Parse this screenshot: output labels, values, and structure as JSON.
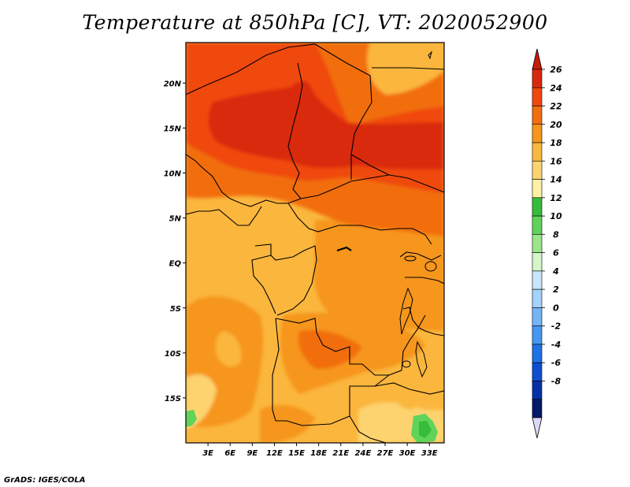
{
  "title": "Temperature at 850hPa [C], VT: 2020052900",
  "credit": "GrADS: IGES/COLA",
  "map": {
    "lat_range": [
      -20,
      24.5
    ],
    "lon_range": [
      0,
      35
    ],
    "lat_ticks": [
      {
        "value": 20,
        "label": "20N"
      },
      {
        "value": 15,
        "label": "15N"
      },
      {
        "value": 10,
        "label": "10N"
      },
      {
        "value": 5,
        "label": "5N"
      },
      {
        "value": 0,
        "label": "EQ"
      },
      {
        "value": -5,
        "label": "5S"
      },
      {
        "value": -10,
        "label": "10S"
      },
      {
        "value": -15,
        "label": "15S"
      }
    ],
    "lon_ticks": [
      {
        "value": 3,
        "label": "3E"
      },
      {
        "value": 6,
        "label": "6E"
      },
      {
        "value": 9,
        "label": "9E"
      },
      {
        "value": 12,
        "label": "12E"
      },
      {
        "value": 15,
        "label": "15E"
      },
      {
        "value": 18,
        "label": "18E"
      },
      {
        "value": 21,
        "label": "21E"
      },
      {
        "value": 24,
        "label": "24E"
      },
      {
        "value": 27,
        "label": "27E"
      },
      {
        "value": 30,
        "label": "30E"
      },
      {
        "value": 33,
        "label": "33E"
      }
    ]
  },
  "colorbar": {
    "labels": [
      "26",
      "24",
      "22",
      "20",
      "18",
      "16",
      "14",
      "12",
      "10",
      "8",
      "6",
      "4",
      "2",
      "0",
      "-2",
      "-4",
      "-6",
      "-8"
    ],
    "colors": [
      "#d9290c",
      "#f0480f",
      "#f26e10",
      "#f6961a",
      "#fbb63e",
      "#fdd36f",
      "#fdf1a2",
      "#35bd3a",
      "#5fd35a",
      "#9ae68b",
      "#d3f7c9",
      "#c8e6fd",
      "#a3d2fc",
      "#74b5f8",
      "#4597f2",
      "#1f71e6",
      "#0d4fcf",
      "#0531a8",
      "#021869"
    ],
    "top_tip": "#c81c07",
    "bottom_tip": "#dadaf8"
  }
}
